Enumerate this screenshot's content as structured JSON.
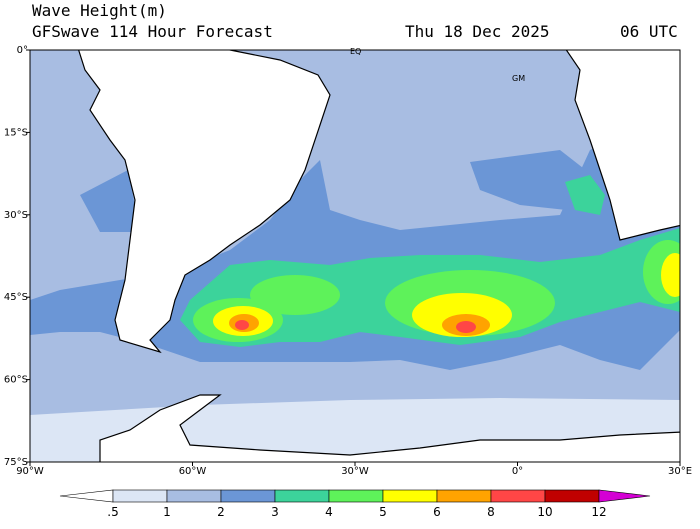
{
  "header": {
    "title": "Wave Height(m)",
    "subtitle": "GFSwave 114 Hour Forecast",
    "date": "Thu 18 Dec 2025",
    "time": "06 UTC"
  },
  "map": {
    "xlim": [
      -90,
      30
    ],
    "ylim": [
      -75,
      0
    ],
    "xticks": [
      {
        "value": -90,
        "label": "90°W"
      },
      {
        "value": -60,
        "label": "60°W"
      },
      {
        "value": -30,
        "label": "30°W"
      },
      {
        "value": 0,
        "label": "0°"
      },
      {
        "value": 30,
        "label": "30°E"
      }
    ],
    "yticks": [
      {
        "value": 0,
        "label": "0°"
      },
      {
        "value": -15,
        "label": "15°S"
      },
      {
        "value": -30,
        "label": "30°S"
      },
      {
        "value": -45,
        "label": "45°S"
      },
      {
        "value": -60,
        "label": "60°S"
      },
      {
        "value": -75,
        "label": "75°S"
      }
    ],
    "annotations": [
      "EQ",
      "GM"
    ]
  },
  "colorbar": {
    "levels": [
      {
        "value": 0.5,
        "label": ".5"
      },
      1,
      2,
      3,
      4,
      5,
      6,
      8,
      10,
      12
    ],
    "colors": [
      "#ffffff",
      "#dce6f5",
      "#a8bde2",
      "#6b96d6",
      "#3cd39b",
      "#5ef25a",
      "#ffff00",
      "#ffa300",
      "#ff4646",
      "#c00000",
      "#d400d4"
    ]
  }
}
